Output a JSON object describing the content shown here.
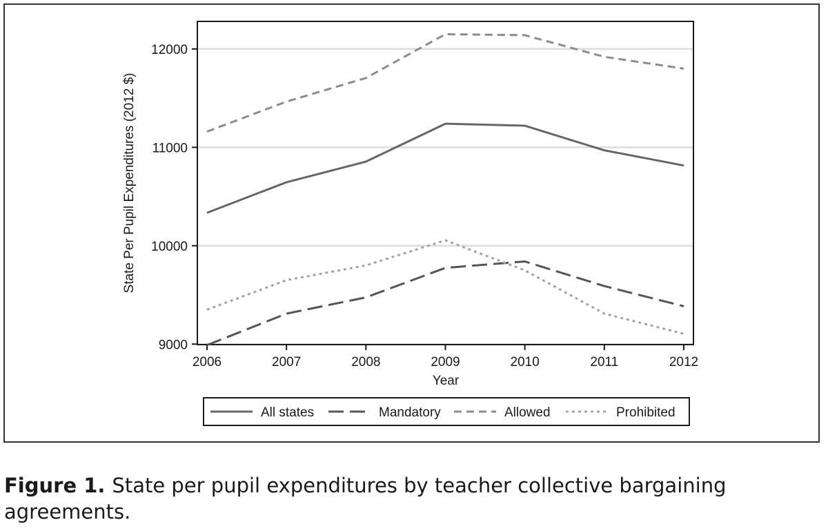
{
  "figure": {
    "label": "Figure 1.",
    "caption": "State per pupil expenditures by teacher collective bargaining agreements."
  },
  "chart_data": {
    "type": "line",
    "title": "",
    "xlabel": "Year",
    "ylabel": "State Per Pupil Expenditures (2012 $)",
    "x": [
      2006,
      2007,
      2008,
      2009,
      2010,
      2011,
      2012
    ],
    "xlim": [
      2006,
      2012
    ],
    "ylim": [
      8995,
      12280
    ],
    "xticks": [
      "2006",
      "2007",
      "2008",
      "2009",
      "2010",
      "2011",
      "2012"
    ],
    "yticks": [
      "9000",
      "10000",
      "11000",
      "12000"
    ],
    "grid": "horizontal",
    "legend_position": "bottom",
    "series": [
      {
        "name": "All states",
        "style": "solid",
        "color": "#666666",
        "values": [
          10335,
          10645,
          10855,
          11240,
          11220,
          10970,
          10815
        ]
      },
      {
        "name": "Mandatory",
        "style": "longdash",
        "color": "#555555",
        "values": [
          8990,
          9310,
          9475,
          9775,
          9840,
          9590,
          9385
        ]
      },
      {
        "name": "Allowed",
        "style": "dash",
        "color": "#8c8c8c",
        "values": [
          11160,
          11465,
          11705,
          12150,
          12140,
          11920,
          11800
        ]
      },
      {
        "name": "Prohibited",
        "style": "dot",
        "color": "#a3a3a3",
        "values": [
          9350,
          9650,
          9800,
          10055,
          9750,
          9310,
          9105
        ]
      }
    ]
  }
}
